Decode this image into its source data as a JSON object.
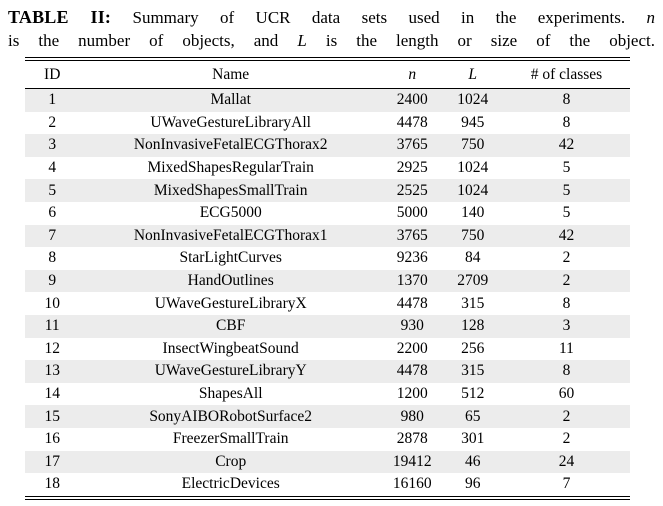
{
  "caption": {
    "line1": {
      "label": "TABLE II:",
      "text": " Summary of UCR data sets used in the experiments. ",
      "var": "n"
    },
    "line2": {
      "pre": "is the number of objects, and ",
      "var": "L",
      "post": " is the length or size of the object."
    }
  },
  "table": {
    "stripe_color": "#ececec",
    "text_color": "#000000",
    "columns": [
      {
        "key": "id",
        "label": "ID",
        "italic": false
      },
      {
        "key": "name",
        "label": "Name",
        "italic": false
      },
      {
        "key": "n",
        "label": "n",
        "italic": true
      },
      {
        "key": "l",
        "label": "L",
        "italic": true
      },
      {
        "key": "classes",
        "label": "# of classes",
        "italic": false
      }
    ],
    "rows": [
      [
        1,
        "Mallat",
        2400,
        1024,
        8
      ],
      [
        2,
        "UWaveGestureLibraryAll",
        4478,
        945,
        8
      ],
      [
        3,
        "NonInvasiveFetalECGThorax2",
        3765,
        750,
        42
      ],
      [
        4,
        "MixedShapesRegularTrain",
        2925,
        1024,
        5
      ],
      [
        5,
        "MixedShapesSmallTrain",
        2525,
        1024,
        5
      ],
      [
        6,
        "ECG5000",
        5000,
        140,
        5
      ],
      [
        7,
        "NonInvasiveFetalECGThorax1",
        3765,
        750,
        42
      ],
      [
        8,
        "StarLightCurves",
        9236,
        84,
        2
      ],
      [
        9,
        "HandOutlines",
        1370,
        2709,
        2
      ],
      [
        10,
        "UWaveGestureLibraryX",
        4478,
        315,
        8
      ],
      [
        11,
        "CBF",
        930,
        128,
        3
      ],
      [
        12,
        "InsectWingbeatSound",
        2200,
        256,
        11
      ],
      [
        13,
        "UWaveGestureLibraryY",
        4478,
        315,
        8
      ],
      [
        14,
        "ShapesAll",
        1200,
        512,
        60
      ],
      [
        15,
        "SonyAIBORobotSurface2",
        980,
        65,
        2
      ],
      [
        16,
        "FreezerSmallTrain",
        2878,
        301,
        2
      ],
      [
        17,
        "Crop",
        19412,
        46,
        24
      ],
      [
        18,
        "ElectricDevices",
        16160,
        96,
        7
      ]
    ]
  }
}
